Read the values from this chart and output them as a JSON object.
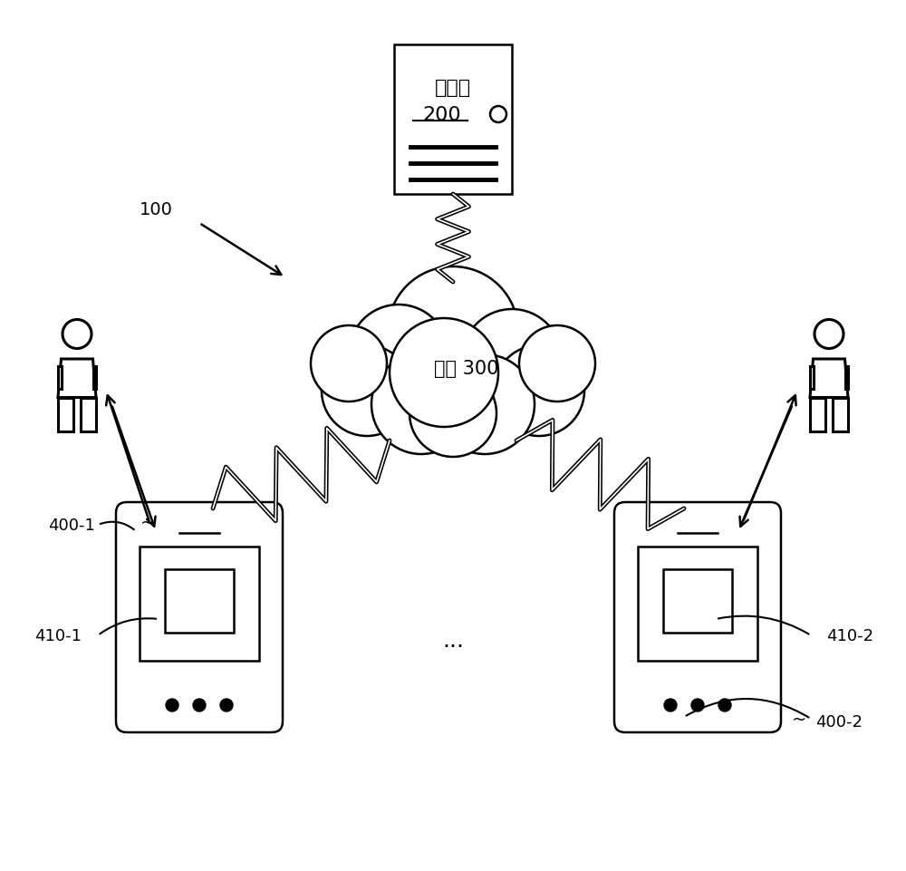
{
  "bg_color": "#ffffff",
  "title": "",
  "server_label": "服务器",
  "server_num": "200",
  "network_label": "网络 300",
  "label_100": "100",
  "label_400_1": "400-1",
  "label_410_1": "410-1",
  "label_400_2": "400-2",
  "label_410_2": "410-2",
  "dots_label": "..."
}
